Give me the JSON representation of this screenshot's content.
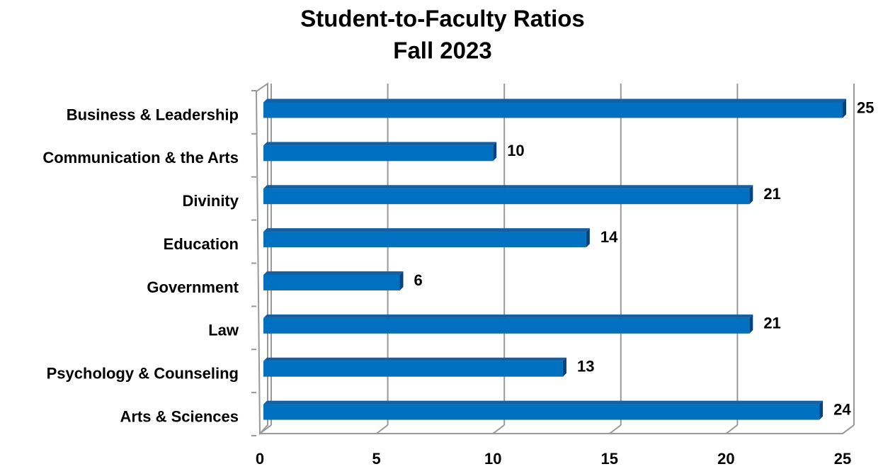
{
  "chart_data": {
    "type": "bar",
    "orientation": "horizontal",
    "title": "Student-to-Faculty Ratios",
    "subtitle": "Fall 2023",
    "categories": [
      "Business & Leadership",
      "Communication & the Arts",
      "Divinity",
      "Education",
      "Government",
      "Law",
      "Psychology & Counseling",
      "Arts & Sciences"
    ],
    "values": [
      25,
      10,
      21,
      14,
      6,
      21,
      13,
      24
    ],
    "color": "#0070c0",
    "xlim": [
      0,
      25
    ],
    "xticks": [
      0,
      5,
      10,
      15,
      20,
      25
    ],
    "grid": true
  }
}
